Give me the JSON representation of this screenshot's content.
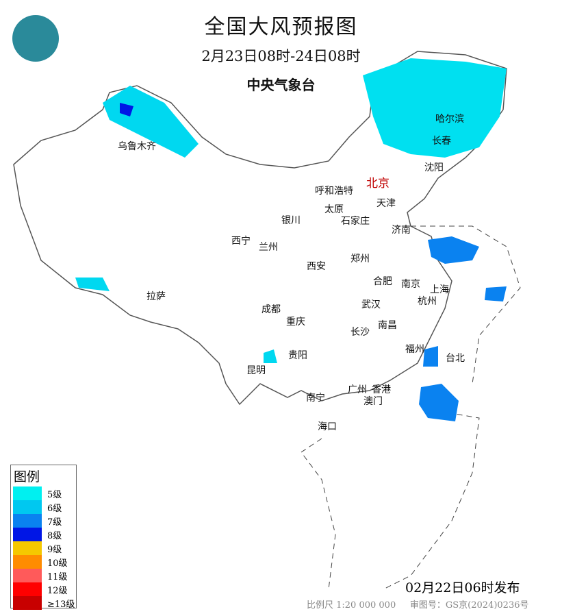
{
  "header": {
    "title": "全国大风预报图",
    "period": "2月23日08时-24日08时",
    "issuer": "中央气象台"
  },
  "logo": {
    "icon": "cma-logo"
  },
  "cities": [
    "乌鲁木齐",
    "哈尔滨",
    "长春",
    "沈阳",
    "北京",
    "天津",
    "呼和浩特",
    "太原",
    "石家庄",
    "济南",
    "银川",
    "西宁",
    "兰州",
    "西安",
    "郑州",
    "合肥",
    "南京",
    "上海",
    "杭州",
    "武汉",
    "拉萨",
    "成都",
    "重庆",
    "长沙",
    "南昌",
    "福州",
    "台北",
    "贵阳",
    "昆明",
    "广州",
    "香港",
    "澳门",
    "南宁",
    "海口"
  ],
  "legend": {
    "title": "图例",
    "items": [
      {
        "label": "5级",
        "color": "#00f0f0"
      },
      {
        "label": "6级",
        "color": "#00c8f0"
      },
      {
        "label": "7级",
        "color": "#0a82f0"
      },
      {
        "label": "8级",
        "color": "#0016e6"
      },
      {
        "label": "9级",
        "color": "#f5c800"
      },
      {
        "label": "10级",
        "color": "#ff8c00"
      },
      {
        "label": "11级",
        "color": "#ff5a5a"
      },
      {
        "label": "12级",
        "color": "#ff0000"
      },
      {
        "label": "≥13级",
        "color": "#c80000"
      }
    ]
  },
  "footer": {
    "published": "02月22日06时发布",
    "scale": "比例尺 1:20 000 000",
    "approval": "审图号：GS京(2024)0236号"
  }
}
